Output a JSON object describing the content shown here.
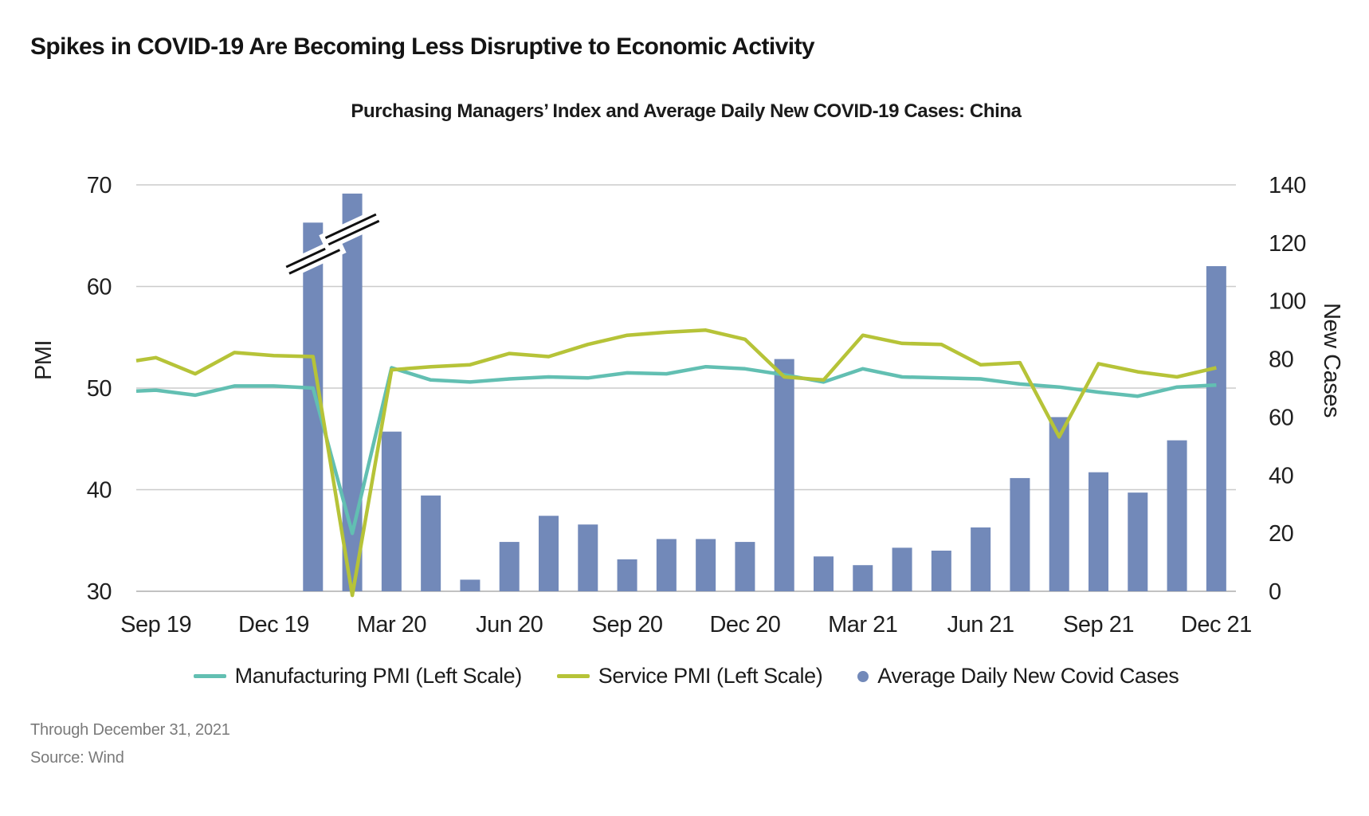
{
  "page": {
    "title": "Spikes in COVID-19 Are Becoming Less Disruptive to Economic Activity",
    "footnote": "Through December 31, 2021",
    "source": "Source: Wind"
  },
  "chart_data": {
    "type": "combo-bar-line",
    "title": "Purchasing Managers’ Index and Average Daily New COVID-19 Cases: China",
    "categories": [
      "Sep 19",
      "Oct 19",
      "Nov 19",
      "Dec 19",
      "Jan 20",
      "Feb 20",
      "Mar 20",
      "Apr 20",
      "May 20",
      "Jun 20",
      "Jul 20",
      "Aug 20",
      "Sep 20",
      "Oct 20",
      "Nov 20",
      "Dec 20",
      "Jan 21",
      "Feb 21",
      "Mar 21",
      "Apr 21",
      "May 21",
      "Jun 21",
      "Jul 21",
      "Aug 21",
      "Sep 21",
      "Oct 21",
      "Nov 21",
      "Dec 21"
    ],
    "x_tick_labels": [
      "Sep 19",
      "Dec 19",
      "Mar 20",
      "Jun 20",
      "Sep 20",
      "Dec 20",
      "Mar 21",
      "Jun 21",
      "Sep 21",
      "Dec 21"
    ],
    "x_tick_every": 3,
    "left_axis": {
      "label": "PMI",
      "min": 30,
      "max": 70,
      "ticks": [
        30,
        40,
        50,
        60,
        70
      ]
    },
    "right_axis": {
      "label": "New Cases",
      "min": 0,
      "max": 140,
      "ticks": [
        0,
        20,
        40,
        60,
        80,
        100,
        120,
        140
      ]
    },
    "grid": "horizontal",
    "legend_position": "bottom",
    "colors": {
      "grid": "#cbcbcb",
      "baseline": "#aeaeae",
      "tick_text": "#1f1f1f"
    },
    "series": [
      {
        "name": "Manufacturing PMI (Left Scale)",
        "type": "line",
        "axis": "left",
        "color": "#62bfb2",
        "left_edge_value": 49.7,
        "values": [
          49.8,
          49.3,
          50.2,
          50.2,
          50.0,
          35.7,
          52.0,
          50.8,
          50.6,
          50.9,
          51.1,
          51.0,
          51.5,
          51.4,
          52.1,
          51.9,
          51.3,
          50.6,
          51.9,
          51.1,
          51.0,
          50.9,
          50.4,
          50.1,
          49.6,
          49.2,
          50.1,
          50.3
        ]
      },
      {
        "name": "Service PMI (Left Scale)",
        "type": "line",
        "axis": "left",
        "color": "#b6c338",
        "left_edge_value": 52.7,
        "values": [
          53.0,
          51.4,
          53.5,
          53.2,
          53.1,
          29.6,
          51.8,
          52.1,
          52.3,
          53.4,
          53.1,
          54.3,
          55.2,
          55.5,
          55.7,
          54.8,
          51.1,
          50.8,
          55.2,
          54.4,
          54.3,
          52.3,
          52.5,
          45.2,
          52.4,
          51.6,
          51.1,
          52.0
        ]
      },
      {
        "name": "Average Daily New Covid Cases",
        "type": "bar",
        "axis": "right",
        "color": "#7289b9",
        "values": [
          null,
          null,
          null,
          null,
          127,
          137,
          55,
          33,
          4,
          17,
          26,
          23,
          11,
          18,
          18,
          17,
          80,
          12,
          9,
          15,
          14,
          22,
          39,
          60,
          41,
          34,
          52,
          112
        ],
        "truncated_indices": [
          4,
          5
        ],
        "truncation_note": "Jan 20 and Feb 20 bars exceed the scale; axis-break marks drawn on bars"
      }
    ]
  }
}
